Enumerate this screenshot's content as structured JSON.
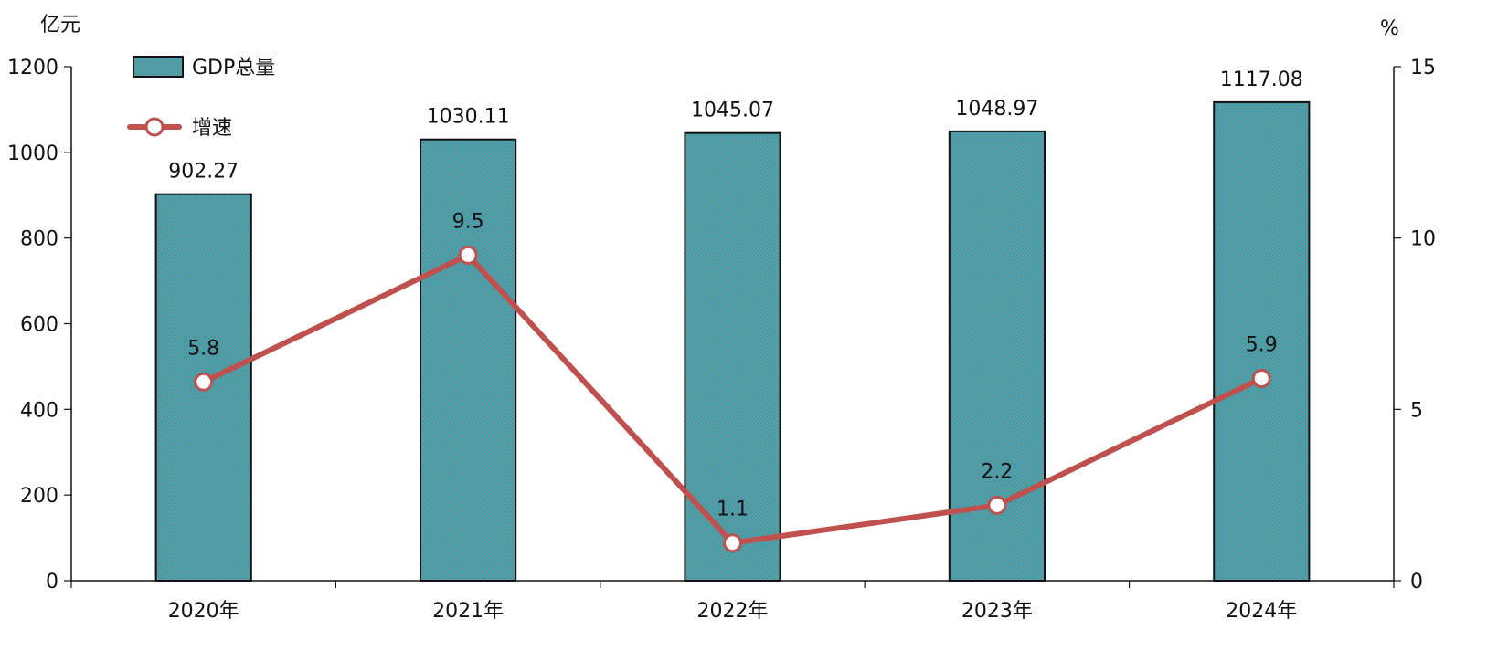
{
  "chart_data": {
    "type": "bar",
    "categories": [
      "2020年",
      "2021年",
      "2022年",
      "2023年",
      "2024年"
    ],
    "series": [
      {
        "name": "GDP总量",
        "kind": "bar",
        "axis": "left",
        "values": [
          902.27,
          1030.11,
          1045.07,
          1048.97,
          1117.08
        ],
        "value_labels": [
          "902.27",
          "1030.11",
          "1045.07",
          "1048.97",
          "1117.08"
        ]
      },
      {
        "name": "增速",
        "kind": "line",
        "axis": "right",
        "values": [
          5.8,
          9.5,
          1.1,
          2.2,
          5.9
        ],
        "value_labels": [
          "5.8",
          "9.5",
          "1.1",
          "2.2",
          "5.9"
        ]
      }
    ],
    "left_axis": {
      "unit": "亿元",
      "ylim": [
        0,
        1200
      ],
      "ticks": [
        "0",
        "200",
        "400",
        "600",
        "800",
        "1000",
        "1200"
      ]
    },
    "right_axis": {
      "unit": "%",
      "ylim": [
        0,
        15
      ],
      "ticks": [
        "0",
        "5",
        "10",
        "15"
      ]
    },
    "legend": {
      "placement": "top-left",
      "items": [
        "GDP总量",
        "增速"
      ]
    },
    "grid": false,
    "colors": {
      "bar_fill": "#2f9fb8",
      "bar_pattern": "#f08c4a",
      "bar_stroke": "#111111",
      "line": "#c0504d",
      "marker_fill": "#ffffff",
      "axis": "#111111"
    }
  }
}
